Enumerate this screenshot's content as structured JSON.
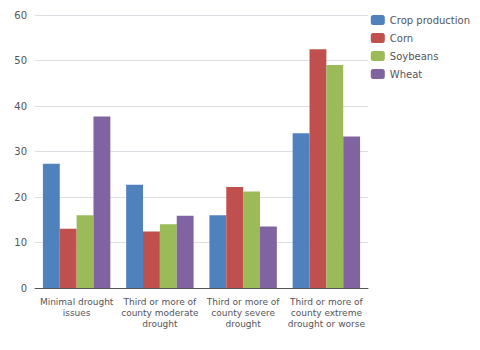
{
  "chart_data": {
    "type": "bar",
    "categories": [
      "Minimal drought\nissues",
      "Third or more of\ncounty moderate\ndrought",
      "Third or more of\ncounty severe\ndrought",
      "Third or more of\ncounty extreme\ndrought or worse"
    ],
    "series": [
      {
        "name": "Crop production",
        "color": "#4F81BD",
        "values": [
          27.3,
          22.7,
          16.0,
          34.0
        ]
      },
      {
        "name": "Corn",
        "color": "#C0504D",
        "values": [
          13.0,
          12.4,
          22.2,
          52.5
        ]
      },
      {
        "name": "Soybeans",
        "color": "#9BBB59",
        "values": [
          16.0,
          14.0,
          21.2,
          49.0
        ]
      },
      {
        "name": "Wheat",
        "color": "#8064A2",
        "values": [
          37.7,
          15.9,
          13.5,
          33.3
        ]
      }
    ],
    "ylim": [
      0,
      60
    ],
    "yticks": [
      0,
      10,
      20,
      30,
      40,
      50,
      60
    ],
    "grid": true,
    "legend": "right"
  }
}
